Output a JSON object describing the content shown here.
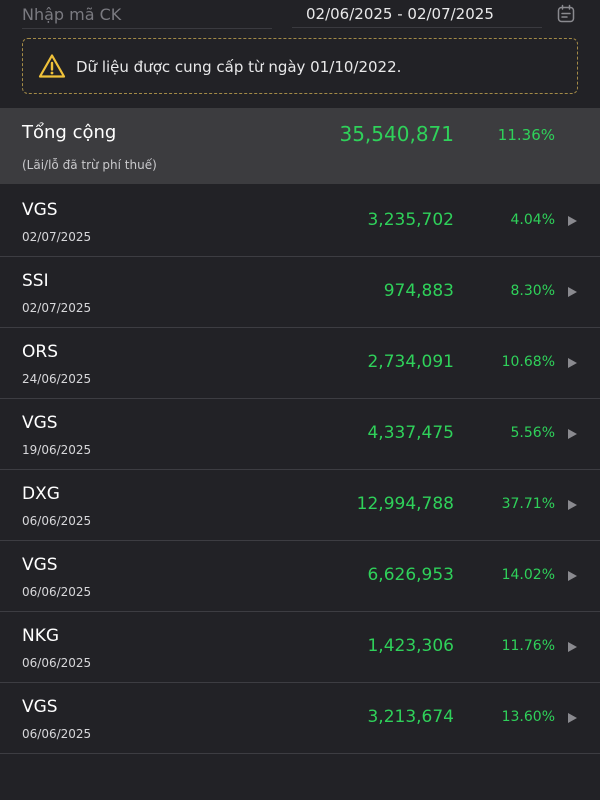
{
  "search": {
    "placeholder": "Nhập mã CK"
  },
  "date_range": "02/06/2025 - 02/07/2025",
  "notice": {
    "text": "Dữ liệu được cung cấp từ ngày 01/10/2022."
  },
  "total": {
    "label": "Tổng cộng",
    "note": "(Lãi/lỗ đã trừ phí thuế)",
    "value": "35,540,871",
    "percent": "11.36%"
  },
  "rows": [
    {
      "symbol": "VGS",
      "date": "02/07/2025",
      "value": "3,235,702",
      "percent": "4.04%"
    },
    {
      "symbol": "SSI",
      "date": "02/07/2025",
      "value": "974,883",
      "percent": "8.30%"
    },
    {
      "symbol": "ORS",
      "date": "24/06/2025",
      "value": "2,734,091",
      "percent": "10.68%"
    },
    {
      "symbol": "VGS",
      "date": "19/06/2025",
      "value": "4,337,475",
      "percent": "5.56%"
    },
    {
      "symbol": "DXG",
      "date": "06/06/2025",
      "value": "12,994,788",
      "percent": "37.71%"
    },
    {
      "symbol": "VGS",
      "date": "06/06/2025",
      "value": "6,626,953",
      "percent": "14.02%"
    },
    {
      "symbol": "NKG",
      "date": "06/06/2025",
      "value": "1,423,306",
      "percent": "11.76%"
    },
    {
      "symbol": "VGS",
      "date": "06/06/2025",
      "value": "3,213,674",
      "percent": "13.60%"
    }
  ],
  "colors": {
    "background": "#222226",
    "total_background": "#3c3c3f",
    "profit_green": "#2fd15a",
    "notice_border": "#a38a47",
    "warning_yellow": "#f0c23a"
  },
  "icons": {
    "calendar": "calendar-icon",
    "warning": "warning-icon",
    "row_arrow": "chevron-right-icon"
  }
}
